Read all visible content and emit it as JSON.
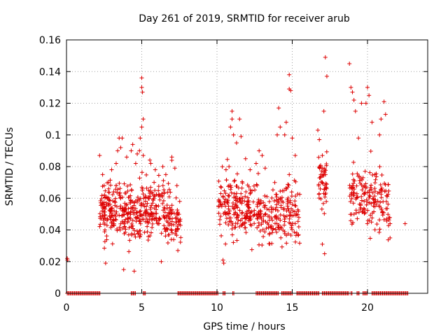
{
  "chart_data": {
    "type": "scatter",
    "title": "Day 261 of 2019, SRMTID for receiver arub",
    "xlabel": "GPS time / hours",
    "ylabel": "SRMTID / TECUs",
    "xlim": [
      0,
      24
    ],
    "ylim": [
      0,
      0.16
    ],
    "x_ticks": [
      0,
      5,
      10,
      15,
      20
    ],
    "x_tick_labels": [
      "0",
      "5",
      "10",
      "15",
      "20"
    ],
    "y_ticks": [
      0,
      0.02,
      0.04,
      0.06,
      0.08,
      0.1,
      0.12,
      0.14,
      0.16
    ],
    "y_tick_labels": [
      "0",
      "0.02",
      "0.04",
      "0.06",
      "0.08",
      "0.1",
      "0.12",
      "0.14",
      "0.16"
    ],
    "grid": true,
    "marker": "+",
    "color": "#dd0000",
    "series": [
      {
        "name": "SRMTID",
        "points": [
          [
            0.05,
            0.022
          ],
          [
            0.07,
            0.021
          ],
          [
            2.2,
            0.087
          ],
          [
            2.4,
            0.075
          ],
          [
            2.5,
            0.068
          ],
          [
            2.6,
            0.019
          ],
          [
            2.8,
            0.07
          ],
          [
            3.0,
            0.078
          ],
          [
            3.3,
            0.082
          ],
          [
            3.4,
            0.09
          ],
          [
            3.5,
            0.098
          ],
          [
            3.6,
            0.092
          ],
          [
            3.7,
            0.098
          ],
          [
            3.8,
            0.015
          ],
          [
            4.0,
            0.086
          ],
          [
            4.3,
            0.09
          ],
          [
            4.4,
            0.094
          ],
          [
            4.5,
            0.014
          ],
          [
            4.6,
            0.082
          ],
          [
            4.7,
            0.088
          ],
          [
            4.85,
            0.09
          ],
          [
            4.9,
            0.098
          ],
          [
            5.0,
            0.136
          ],
          [
            5.0,
            0.13
          ],
          [
            5.05,
            0.127
          ],
          [
            5.1,
            0.11
          ],
          [
            5.0,
            0.105
          ],
          [
            5.1,
            0.087
          ],
          [
            5.6,
            0.082
          ],
          [
            5.9,
            0.078
          ],
          [
            6.3,
            0.02
          ],
          [
            6.4,
            0.08
          ],
          [
            6.6,
            0.075
          ],
          [
            7.0,
            0.086
          ],
          [
            7.0,
            0.084
          ],
          [
            7.2,
            0.079
          ],
          [
            7.4,
            0.027
          ],
          [
            7.5,
            0.046
          ],
          [
            10.1,
            0.055
          ],
          [
            10.4,
            0.021
          ],
          [
            10.45,
            0.019
          ],
          [
            10.6,
            0.078
          ],
          [
            10.8,
            0.08
          ],
          [
            10.9,
            0.105
          ],
          [
            11.0,
            0.11
          ],
          [
            11.0,
            0.115
          ],
          [
            11.1,
            0.1
          ],
          [
            11.3,
            0.095
          ],
          [
            11.5,
            0.11
          ],
          [
            11.6,
            0.099
          ],
          [
            11.9,
            0.085
          ],
          [
            12.2,
            0.078
          ],
          [
            12.6,
            0.082
          ],
          [
            12.8,
            0.09
          ],
          [
            13.0,
            0.087
          ],
          [
            13.2,
            0.079
          ],
          [
            13.7,
            0.04
          ],
          [
            14.0,
            0.1
          ],
          [
            14.1,
            0.117
          ],
          [
            14.2,
            0.105
          ],
          [
            14.5,
            0.1
          ],
          [
            14.6,
            0.108
          ],
          [
            14.8,
            0.129
          ],
          [
            14.8,
            0.138
          ],
          [
            14.9,
            0.128
          ],
          [
            15.0,
            0.098
          ],
          [
            15.2,
            0.087
          ],
          [
            16.7,
            0.103
          ],
          [
            16.8,
            0.097
          ],
          [
            16.9,
            0.075
          ],
          [
            17.0,
            0.087
          ],
          [
            17.1,
            0.115
          ],
          [
            17.0,
            0.031
          ],
          [
            17.15,
            0.025
          ],
          [
            17.2,
            0.149
          ],
          [
            17.3,
            0.137
          ],
          [
            18.8,
            0.145
          ],
          [
            18.9,
            0.13
          ],
          [
            19.0,
            0.127
          ],
          [
            19.1,
            0.122
          ],
          [
            19.2,
            0.115
          ],
          [
            19.4,
            0.098
          ],
          [
            19.6,
            0.12
          ],
          [
            19.9,
            0.12
          ],
          [
            20.0,
            0.13
          ],
          [
            20.1,
            0.125
          ],
          [
            20.3,
            0.108
          ],
          [
            20.5,
            0.075
          ],
          [
            20.8,
            0.1
          ],
          [
            20.9,
            0.11
          ],
          [
            21.1,
            0.121
          ],
          [
            21.2,
            0.113
          ],
          [
            21.5,
            0.044
          ],
          [
            21.5,
            0.035
          ],
          [
            22.5,
            0.044
          ]
        ]
      }
    ],
    "zero_segments": [
      [
        0.05,
        2.25
      ],
      [
        4.3,
        4.6
      ],
      [
        5.1,
        5.25
      ],
      [
        7.4,
        10.1
      ],
      [
        10.4,
        10.6
      ],
      [
        11.05,
        11.15
      ],
      [
        12.6,
        14.1
      ],
      [
        14.3,
        15.0
      ],
      [
        15.3,
        16.8
      ],
      [
        17.0,
        18.8
      ],
      [
        18.9,
        19.0
      ],
      [
        19.3,
        19.5
      ],
      [
        19.7,
        20.0
      ],
      [
        20.3,
        22.7
      ]
    ],
    "dense_clusters": [
      {
        "x_range": [
          2.2,
          3.6
        ],
        "y_center": 0.053,
        "y_spread": 0.015,
        "count": 130
      },
      {
        "x_range": [
          3.6,
          5.0
        ],
        "y_center": 0.05,
        "y_spread": 0.015,
        "count": 120
      },
      {
        "x_range": [
          5.0,
          6.5
        ],
        "y_center": 0.055,
        "y_spread": 0.016,
        "count": 120
      },
      {
        "x_range": [
          6.5,
          7.6
        ],
        "y_center": 0.048,
        "y_spread": 0.014,
        "count": 80
      },
      {
        "x_range": [
          10.1,
          11.5
        ],
        "y_center": 0.055,
        "y_spread": 0.016,
        "count": 110
      },
      {
        "x_range": [
          11.5,
          13.0
        ],
        "y_center": 0.052,
        "y_spread": 0.015,
        "count": 110
      },
      {
        "x_range": [
          13.0,
          14.2
        ],
        "y_center": 0.05,
        "y_spread": 0.014,
        "count": 70
      },
      {
        "x_range": [
          14.2,
          15.5
        ],
        "y_center": 0.05,
        "y_spread": 0.016,
        "count": 90
      },
      {
        "x_range": [
          16.7,
          17.3
        ],
        "y_center": 0.068,
        "y_spread": 0.015,
        "count": 50
      },
      {
        "x_range": [
          18.8,
          20.2
        ],
        "y_center": 0.062,
        "y_spread": 0.016,
        "count": 90
      },
      {
        "x_range": [
          20.2,
          21.5
        ],
        "y_center": 0.06,
        "y_spread": 0.016,
        "count": 80
      }
    ]
  }
}
